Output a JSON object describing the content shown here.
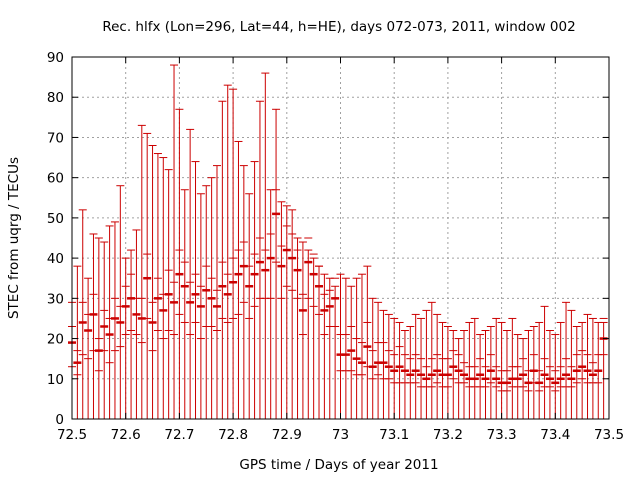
{
  "chart_data": {
    "type": "scatter",
    "title": "Rec. hlfx (Lon=296, Lat=44, h=HE), days 072-073, 2011, window 002",
    "xlabel": "GPS time / Days of year 2011",
    "ylabel": "STEC from uqrg / TECUs",
    "xlim": [
      72.5,
      73.5
    ],
    "ylim": [
      0,
      90
    ],
    "xticks": [
      "72.5",
      "72.6",
      "72.7",
      "72.8",
      "72.9",
      "73",
      "73.1",
      "73.2",
      "73.3",
      "73.4",
      "73.5"
    ],
    "xtick_values": [
      72.5,
      72.6,
      72.7,
      72.8,
      72.9,
      73.0,
      73.1,
      73.2,
      73.3,
      73.4,
      73.5
    ],
    "yticks": [
      "0",
      "10",
      "20",
      "30",
      "40",
      "50",
      "60",
      "70",
      "80",
      "90"
    ],
    "ytick_values": [
      0,
      10,
      20,
      30,
      40,
      50,
      60,
      70,
      80,
      90
    ],
    "grid": true,
    "legend": "none",
    "color": "#cc0000",
    "series": [
      {
        "x": [
          72.5,
          72.51,
          72.52,
          72.53,
          72.54,
          72.55,
          72.56,
          72.57,
          72.58,
          72.59,
          72.6,
          72.61,
          72.62,
          72.63,
          72.64,
          72.65,
          72.66,
          72.67,
          72.68,
          72.69,
          72.7,
          72.71,
          72.72,
          72.73,
          72.74,
          72.75,
          72.76,
          72.77,
          72.78,
          72.79,
          72.8,
          72.81,
          72.82,
          72.83,
          72.84,
          72.85,
          72.86,
          72.87,
          72.88,
          72.89,
          72.9,
          72.91,
          72.92,
          72.93,
          72.94,
          72.95,
          72.96,
          72.97,
          72.98,
          72.99
        ],
        "y": [
          19,
          14,
          24,
          22,
          26,
          17,
          23,
          21,
          25,
          24,
          28,
          30,
          26,
          25,
          35,
          24,
          30,
          27,
          31,
          29,
          36,
          33,
          29,
          31,
          28,
          32,
          30,
          28,
          33,
          31,
          34,
          36,
          38,
          33,
          36,
          39,
          37,
          40,
          51,
          38,
          42,
          40,
          37,
          27,
          39,
          36,
          33,
          27,
          28,
          30
        ],
        "err_low": [
          6,
          3,
          8,
          7,
          9,
          5,
          6,
          7,
          8,
          6,
          7,
          8,
          5,
          6,
          10,
          7,
          8,
          7,
          9,
          8,
          10,
          9,
          8,
          7,
          8,
          9,
          7,
          6,
          8,
          7,
          9,
          10,
          9,
          8,
          8,
          9,
          7,
          10,
          12,
          8,
          9,
          8,
          7,
          6,
          9,
          8,
          7,
          6,
          5,
          7
        ],
        "err_high": [
          4,
          3,
          5,
          4,
          5,
          3,
          4,
          4,
          5,
          4,
          5,
          6,
          4,
          5,
          6,
          5,
          5,
          4,
          6,
          5,
          6,
          6,
          5,
          5,
          5,
          6,
          5,
          4,
          6,
          5,
          6,
          6,
          6,
          5,
          5,
          6,
          5,
          6,
          6,
          5,
          6,
          6,
          5,
          4,
          6,
          5,
          5,
          4,
          4,
          5
        ],
        "bar_top": [
          29,
          38,
          52,
          35,
          46,
          45,
          44,
          48,
          49,
          58,
          40,
          42,
          47,
          73,
          71,
          68,
          66,
          65,
          62,
          88,
          77,
          57,
          72,
          64,
          56,
          58,
          60,
          63,
          79,
          83,
          82,
          69,
          63,
          56,
          64,
          79,
          86,
          57,
          77,
          54,
          53,
          52,
          45,
          44,
          42,
          40,
          38,
          36,
          35,
          33
        ]
      },
      {
        "x": [
          73.0,
          73.01,
          73.02,
          73.03,
          73.04,
          73.05,
          73.06,
          73.07,
          73.08,
          73.09,
          73.1,
          73.11,
          73.12,
          73.13,
          73.14,
          73.15,
          73.16,
          73.17,
          73.18,
          73.19,
          73.2,
          73.21,
          73.22,
          73.23,
          73.24,
          73.25,
          73.26,
          73.27,
          73.28,
          73.29,
          73.3,
          73.31,
          73.32,
          73.33,
          73.34,
          73.35,
          73.36,
          73.37,
          73.38,
          73.39,
          73.4,
          73.41,
          73.42,
          73.43,
          73.44,
          73.45,
          73.46,
          73.47,
          73.48,
          73.49
        ],
        "y": [
          16,
          16,
          17,
          15,
          14,
          18,
          13,
          14,
          14,
          13,
          12,
          13,
          12,
          11,
          12,
          11,
          10,
          11,
          12,
          11,
          11,
          13,
          12,
          11,
          10,
          10,
          11,
          10,
          12,
          10,
          9,
          9,
          10,
          10,
          11,
          9,
          12,
          9,
          11,
          10,
          9,
          10,
          11,
          10,
          12,
          13,
          12,
          11,
          12,
          20
        ],
        "err_low": [
          4,
          4,
          5,
          4,
          3,
          5,
          3,
          3,
          4,
          3,
          3,
          4,
          3,
          2,
          3,
          3,
          2,
          3,
          3,
          3,
          3,
          3,
          3,
          2,
          2,
          2,
          3,
          2,
          3,
          2,
          2,
          2,
          2,
          2,
          3,
          2,
          3,
          2,
          3,
          2,
          2,
          2,
          3,
          2,
          3,
          3,
          3,
          2,
          3,
          4
        ],
        "err_high": [
          5,
          5,
          6,
          5,
          5,
          6,
          4,
          5,
          5,
          4,
          4,
          5,
          4,
          4,
          4,
          4,
          3,
          4,
          4,
          4,
          4,
          4,
          4,
          3,
          3,
          3,
          4,
          3,
          4,
          3,
          3,
          3,
          3,
          3,
          4,
          3,
          4,
          3,
          4,
          3,
          3,
          3,
          4,
          3,
          4,
          4,
          4,
          3,
          4,
          5
        ],
        "bar_top": [
          36,
          35,
          33,
          35,
          36,
          38,
          30,
          29,
          27,
          26,
          25,
          24,
          22,
          23,
          26,
          25,
          27,
          29,
          26,
          24,
          23,
          22,
          20,
          22,
          24,
          25,
          21,
          22,
          23,
          25,
          24,
          22,
          25,
          21,
          20,
          22,
          23,
          24,
          28,
          22,
          21,
          24,
          29,
          27,
          23,
          24,
          26,
          25,
          24,
          24
        ]
      }
    ]
  }
}
